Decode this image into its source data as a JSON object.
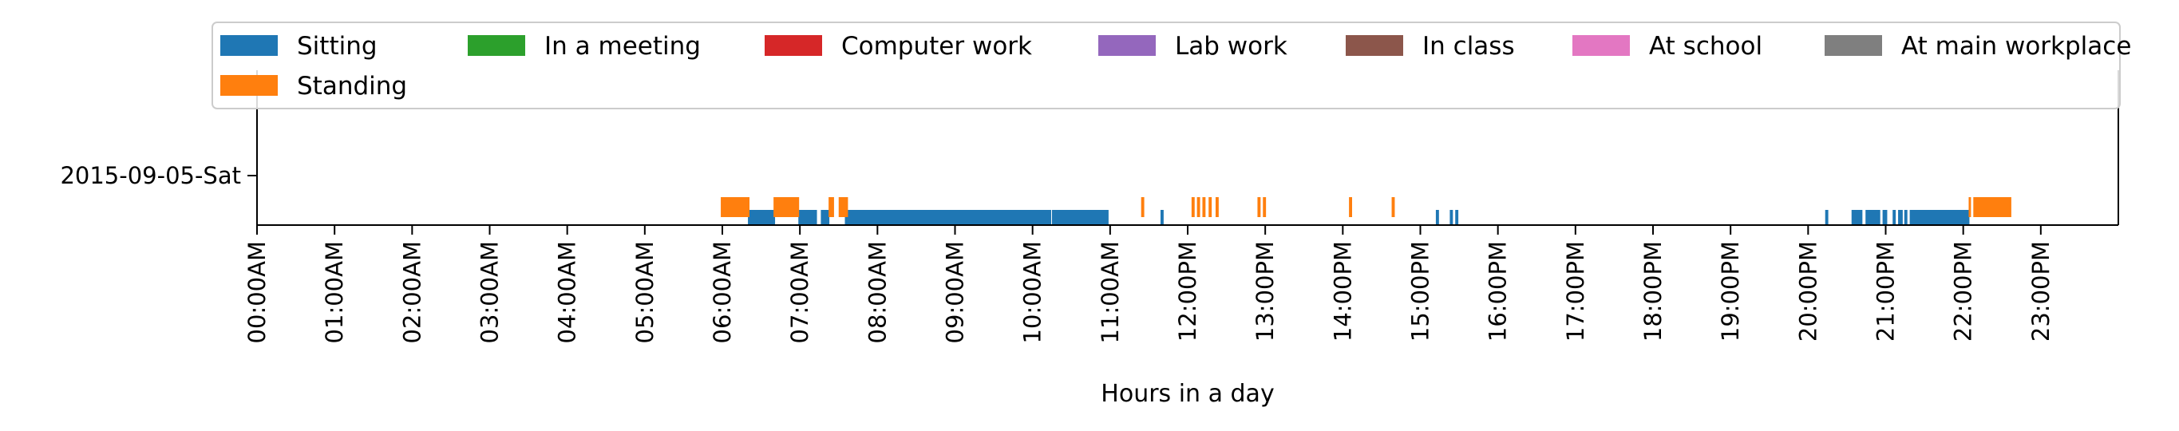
{
  "chart_data": {
    "type": "timeline",
    "xlabel": "Hours in a day",
    "ylabel": "",
    "xlim": [
      0,
      24
    ],
    "x_ticks": [
      {
        "value": 0,
        "label": "00:00AM"
      },
      {
        "value": 1,
        "label": "01:00AM"
      },
      {
        "value": 2,
        "label": "02:00AM"
      },
      {
        "value": 3,
        "label": "03:00AM"
      },
      {
        "value": 4,
        "label": "04:00AM"
      },
      {
        "value": 5,
        "label": "05:00AM"
      },
      {
        "value": 6,
        "label": "06:00AM"
      },
      {
        "value": 7,
        "label": "07:00AM"
      },
      {
        "value": 8,
        "label": "08:00AM"
      },
      {
        "value": 9,
        "label": "09:00AM"
      },
      {
        "value": 10,
        "label": "10:00AM"
      },
      {
        "value": 11,
        "label": "11:00AM"
      },
      {
        "value": 12,
        "label": "12:00PM"
      },
      {
        "value": 13,
        "label": "13:00PM"
      },
      {
        "value": 14,
        "label": "14:00PM"
      },
      {
        "value": 15,
        "label": "15:00PM"
      },
      {
        "value": 16,
        "label": "16:00PM"
      },
      {
        "value": 17,
        "label": "17:00PM"
      },
      {
        "value": 18,
        "label": "18:00PM"
      },
      {
        "value": 19,
        "label": "19:00PM"
      },
      {
        "value": 20,
        "label": "20:00PM"
      },
      {
        "value": 21,
        "label": "21:00PM"
      },
      {
        "value": 22,
        "label": "22:00PM"
      },
      {
        "value": 23,
        "label": "23:00PM"
      }
    ],
    "y_categories": [
      "2015-09-05-Sat"
    ],
    "legend_position": "top",
    "legend": [
      {
        "name": "Sitting",
        "color": "#1f77b4"
      },
      {
        "name": "In a meeting",
        "color": "#2ca02c"
      },
      {
        "name": "Computer work",
        "color": "#d62728"
      },
      {
        "name": "Lab work",
        "color": "#9467bd"
      },
      {
        "name": "In class",
        "color": "#8c564b"
      },
      {
        "name": "At school",
        "color": "#e377c2"
      },
      {
        "name": "At main workplace",
        "color": "#7f7f7f"
      },
      {
        "name": "Standing",
        "color": "#ff7f0e"
      }
    ],
    "series": [
      {
        "name": "Sitting",
        "color": "#1f77b4",
        "row": 0,
        "intervals": [
          [
            6.33,
            6.68
          ],
          [
            6.98,
            7.22
          ],
          [
            7.27,
            7.38
          ],
          [
            7.58,
            10.24
          ],
          [
            10.25,
            10.98
          ],
          [
            11.65,
            11.69
          ],
          [
            15.2,
            15.24
          ],
          [
            15.38,
            15.42
          ],
          [
            15.45,
            15.49
          ],
          [
            20.22,
            20.26
          ],
          [
            20.56,
            20.7
          ],
          [
            20.74,
            20.93
          ],
          [
            20.96,
            21.02
          ],
          [
            21.09,
            21.13
          ],
          [
            21.16,
            21.22
          ],
          [
            21.24,
            21.28
          ],
          [
            21.31,
            22.08
          ]
        ]
      },
      {
        "name": "Standing",
        "color": "#ff7f0e",
        "row": 0,
        "intervals": [
          [
            5.98,
            6.35
          ],
          [
            6.66,
            6.99
          ],
          [
            7.37,
            7.44
          ],
          [
            7.5,
            7.62
          ],
          [
            11.4,
            11.44
          ],
          [
            12.05,
            12.09
          ],
          [
            12.12,
            12.16
          ],
          [
            12.19,
            12.23
          ],
          [
            12.27,
            12.31
          ],
          [
            12.36,
            12.4
          ],
          [
            12.9,
            12.94
          ],
          [
            12.97,
            13.01
          ],
          [
            14.08,
            14.12
          ],
          [
            14.63,
            14.67
          ],
          [
            22.07,
            22.1
          ],
          [
            22.13,
            22.62
          ]
        ]
      }
    ]
  }
}
